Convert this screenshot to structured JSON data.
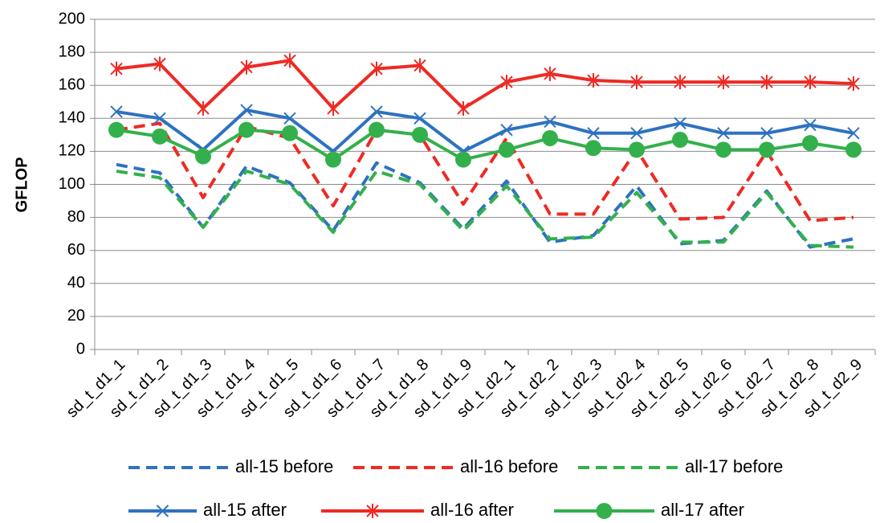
{
  "chart_data": {
    "type": "line",
    "y_label": "GFLOP",
    "categories": [
      "sd_t_d1_1",
      "sd_t_d1_2",
      "sd_t_d1_3",
      "sd_t_d1_4",
      "sd_t_d1_5",
      "sd_t_d1_6",
      "sd_t_d1_7",
      "sd_t_d1_8",
      "sd_t_d1_9",
      "sd_t_d2_1",
      "sd_t_d2_2",
      "sd_t_d2_3",
      "sd_t_d2_4",
      "sd_t_d2_5",
      "sd_t_d2_6",
      "sd_t_d2_7",
      "sd_t_d2_8",
      "sd_t_d2_9"
    ],
    "series": [
      {
        "name": "all-15 before",
        "color": "#2e72c0",
        "dashed": true,
        "marker": "none",
        "values": [
          112,
          107,
          74,
          111,
          101,
          72,
          113,
          101,
          73,
          102,
          65,
          69,
          99,
          64,
          66,
          96,
          62,
          67
        ]
      },
      {
        "name": "all-16 before",
        "color": "#ee2a24",
        "dashed": true,
        "marker": "none",
        "values": [
          133,
          137,
          92,
          135,
          128,
          87,
          133,
          130,
          88,
          128,
          82,
          82,
          121,
          79,
          80,
          120,
          78,
          80
        ]
      },
      {
        "name": "all-17 before",
        "color": "#33b04c",
        "dashed": true,
        "marker": "none",
        "values": [
          108,
          104,
          74,
          108,
          100,
          71,
          108,
          100,
          72,
          99,
          67,
          68,
          95,
          65,
          65,
          95,
          63,
          62
        ]
      },
      {
        "name": "all-15 after",
        "color": "#2e72c0",
        "dashed": false,
        "marker": "x",
        "values": [
          144,
          140,
          121,
          145,
          140,
          120,
          144,
          140,
          120,
          133,
          138,
          131,
          131,
          137,
          131,
          131,
          136,
          131
        ]
      },
      {
        "name": "all-16 after",
        "color": "#ee2a24",
        "dashed": false,
        "marker": "asterisk",
        "values": [
          170,
          173,
          146,
          171,
          175,
          146,
          170,
          172,
          146,
          162,
          167,
          163,
          162,
          162,
          162,
          162,
          162,
          161
        ]
      },
      {
        "name": "all-17 after",
        "color": "#33b04c",
        "dashed": false,
        "marker": "circle",
        "values": [
          133,
          129,
          117,
          133,
          131,
          115,
          133,
          130,
          115,
          121,
          128,
          122,
          121,
          127,
          121,
          121,
          125,
          121
        ]
      }
    ],
    "ylim": [
      0,
      200
    ],
    "yticks": [
      0,
      20,
      40,
      60,
      80,
      100,
      120,
      140,
      160,
      180,
      200
    ],
    "grid": true,
    "legend": "bottom"
  }
}
